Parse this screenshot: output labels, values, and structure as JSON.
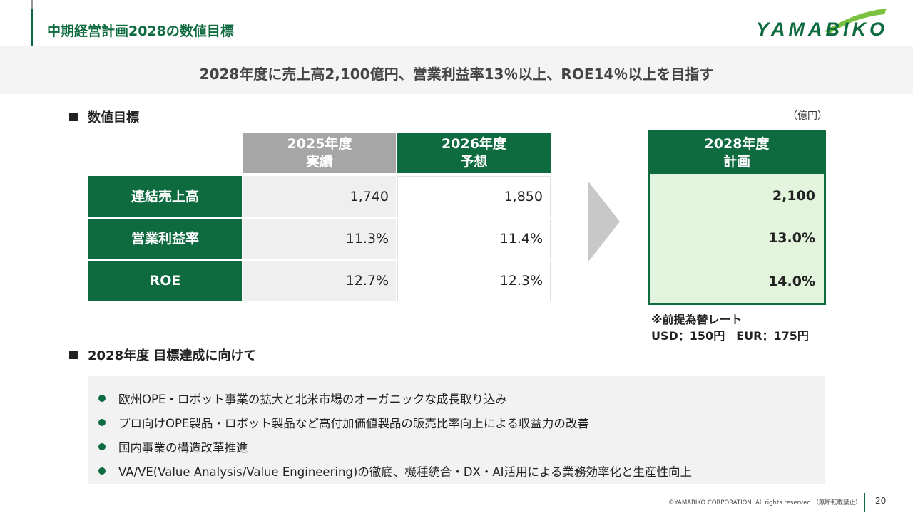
{
  "header": {
    "title": "中期経営計画2028の数値目標",
    "logo_text": "YAMABIKO"
  },
  "headline": "2028年度に売上高2,100億円、営業利益率13％以上、ROE14％以上を目指す",
  "section1": {
    "heading": "数値目標",
    "unit": "（億円）"
  },
  "table": {
    "columns": [
      {
        "line1": "2025年度",
        "line2": "実績"
      },
      {
        "line1": "2026年度",
        "line2": "予想"
      }
    ],
    "rows": [
      {
        "label": "連結売上高",
        "values": [
          "1,740",
          "1,850"
        ]
      },
      {
        "label": "営業利益率",
        "values": [
          "11.3%",
          "11.4%"
        ]
      },
      {
        "label": "ROE",
        "values": [
          "12.7%",
          "12.3%"
        ]
      }
    ]
  },
  "plan": {
    "line1": "2028年度",
    "line2": "計画",
    "values": [
      "2,100",
      "13.0%",
      "14.0%"
    ]
  },
  "note": {
    "line1": "※前提為替レート",
    "line2": "USD：150円　EUR：175円"
  },
  "section2": {
    "heading": "2028年度 目標達成に向けて",
    "bullets": [
      "欧州OPE・ロボット事業の拡大と北米市場のオーガニックな成長取り込み",
      "プロ向けOPE製品・ロボット製品など高付加価値製品の販売比率向上による収益力の改善",
      "国内事業の構造改革推進",
      "VA/VE(Value Analysis/Value Engineering)の徹底、機種統合・DX・AI活用による業務効率化と生産性向上"
    ]
  },
  "footer": {
    "copyright": "©YAMABIKO CORPORATION. All rights reserved.（無断転載禁止）",
    "page": "20"
  },
  "colors": {
    "brand_green": "#0e6b3f",
    "plan_fill": "#e2f5dc",
    "actual_header": "#a6a6a6"
  }
}
